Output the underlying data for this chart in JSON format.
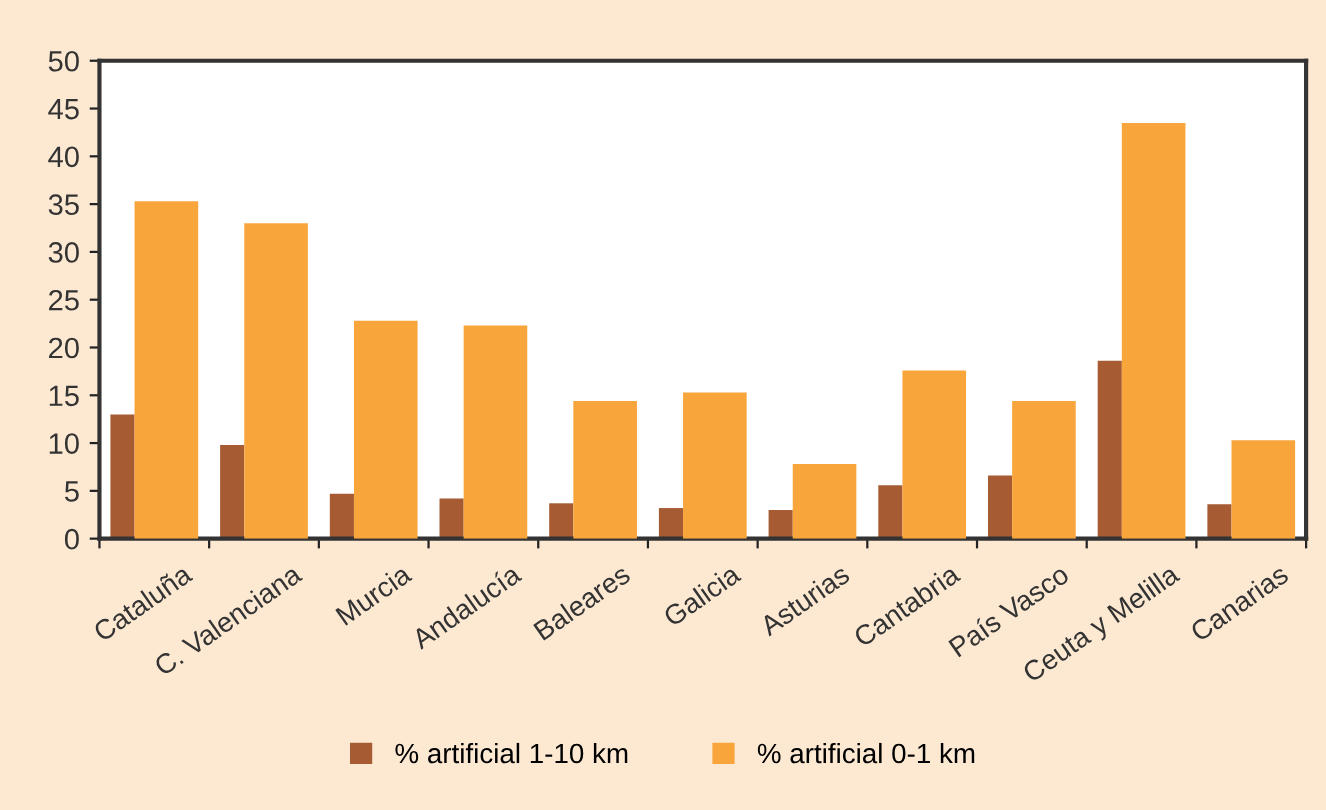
{
  "chart_data": {
    "type": "bar",
    "categories": [
      "Cataluña",
      "C. Valenciana",
      "Murcia",
      "Andalucía",
      "Baleares",
      "Galicia",
      "Asturias",
      "Cantabria",
      "País Vasco",
      "Ceuta y Melilla",
      "Canarias"
    ],
    "series": [
      {
        "name": "% artificial 1-10 km",
        "color": "#a65b33",
        "values": [
          13.0,
          9.8,
          4.7,
          4.2,
          3.7,
          3.2,
          3.0,
          5.6,
          6.6,
          18.6,
          3.6
        ]
      },
      {
        "name": "% artificial 0-1 km",
        "color": "#f8a53c",
        "values": [
          35.3,
          33.0,
          22.8,
          22.3,
          14.4,
          15.3,
          7.8,
          17.6,
          14.4,
          43.5,
          10.3
        ]
      }
    ],
    "ylim": [
      0,
      50
    ],
    "yticks": [
      0,
      5,
      10,
      15,
      20,
      25,
      30,
      35,
      40,
      45,
      50
    ],
    "grid": false,
    "legend": "bottom"
  }
}
